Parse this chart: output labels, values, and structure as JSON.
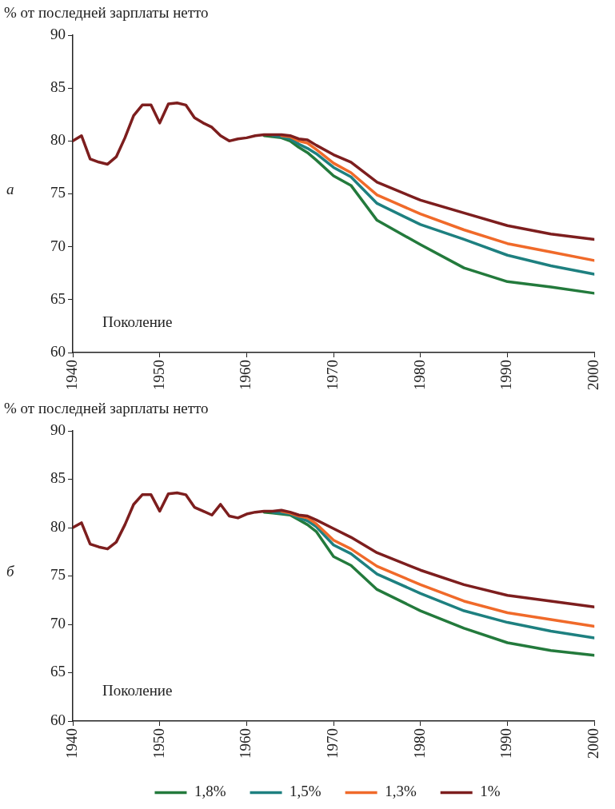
{
  "chart_data": [
    {
      "type": "line",
      "title": "а",
      "ylabel": "% от последней зарплаты нетто",
      "xlabel": "Поколение",
      "xlim": [
        1940,
        2000
      ],
      "xticks": [
        1940,
        1950,
        1960,
        1970,
        1980,
        1990,
        2000
      ],
      "ylim": [
        60,
        90
      ],
      "yticks": [
        60,
        65,
        70,
        75,
        80,
        85,
        90
      ],
      "grid": false,
      "legend": false,
      "marker": "none",
      "line_style": "solid",
      "x": [
        1940,
        1941,
        1942,
        1943,
        1944,
        1945,
        1946,
        1947,
        1948,
        1949,
        1950,
        1951,
        1952,
        1953,
        1954,
        1955,
        1956,
        1957,
        1958,
        1959,
        1960,
        1961,
        1962,
        1963,
        1964,
        1965,
        1966,
        1967,
        1968,
        1970,
        1972,
        1975,
        1980,
        1985,
        1990,
        1995,
        2000
      ],
      "series": [
        {
          "color": "#237a3c",
          "values": [
            null,
            null,
            null,
            null,
            null,
            null,
            null,
            null,
            null,
            null,
            null,
            null,
            null,
            null,
            null,
            null,
            null,
            null,
            null,
            null,
            null,
            null,
            80.5,
            80.4,
            80.3,
            80.0,
            79.4,
            78.9,
            78.2,
            76.7,
            75.8,
            72.5,
            70.2,
            68.0,
            66.7,
            66.2,
            65.6
          ]
        },
        {
          "color": "#1e8080",
          "values": [
            null,
            null,
            null,
            null,
            null,
            null,
            null,
            null,
            null,
            null,
            null,
            null,
            null,
            null,
            null,
            null,
            null,
            null,
            null,
            null,
            null,
            null,
            null,
            80.5,
            80.4,
            80.2,
            79.7,
            79.3,
            78.8,
            77.5,
            76.6,
            74.1,
            72.1,
            70.7,
            69.2,
            68.2,
            67.4
          ]
        },
        {
          "color": "#f06a2a",
          "values": [
            null,
            null,
            null,
            null,
            null,
            null,
            null,
            null,
            null,
            null,
            null,
            null,
            null,
            null,
            null,
            null,
            null,
            null,
            null,
            null,
            null,
            null,
            null,
            null,
            80.5,
            80.4,
            80.0,
            79.8,
            79.2,
            77.9,
            77.0,
            74.9,
            73.1,
            71.6,
            70.3,
            69.5,
            68.7
          ]
        },
        {
          "color": "#7d1e1e",
          "values": [
            80.0,
            80.5,
            78.3,
            78.0,
            77.8,
            78.5,
            80.3,
            82.4,
            83.4,
            83.4,
            81.7,
            83.5,
            83.6,
            83.4,
            82.2,
            81.7,
            81.3,
            80.5,
            80.0,
            80.2,
            80.3,
            80.5,
            80.6,
            80.6,
            80.6,
            80.5,
            80.2,
            80.1,
            79.6,
            78.7,
            78.0,
            76.1,
            74.4,
            73.2,
            72.0,
            71.2,
            70.7
          ]
        }
      ]
    },
    {
      "type": "line",
      "title": "б",
      "ylabel": "% от последней зарплаты нетто",
      "xlabel": "Поколение",
      "xlim": [
        1940,
        2000
      ],
      "xticks": [
        1940,
        1950,
        1960,
        1970,
        1980,
        1990,
        2000
      ],
      "ylim": [
        60,
        90
      ],
      "yticks": [
        60,
        65,
        70,
        75,
        80,
        85,
        90
      ],
      "grid": false,
      "legend": "bottom",
      "marker": "none",
      "line_style": "solid",
      "x": [
        1940,
        1941,
        1942,
        1943,
        1944,
        1945,
        1946,
        1947,
        1948,
        1949,
        1950,
        1951,
        1952,
        1953,
        1954,
        1955,
        1956,
        1957,
        1958,
        1959,
        1960,
        1961,
        1962,
        1963,
        1964,
        1965,
        1966,
        1967,
        1968,
        1970,
        1972,
        1975,
        1980,
        1985,
        1990,
        1995,
        2000
      ],
      "series": [
        {
          "name": "1,8%",
          "color": "#237a3c",
          "values": [
            null,
            null,
            null,
            null,
            null,
            null,
            null,
            null,
            null,
            null,
            null,
            null,
            null,
            null,
            null,
            null,
            null,
            null,
            null,
            null,
            null,
            null,
            81.6,
            81.5,
            81.4,
            81.3,
            80.8,
            80.3,
            79.6,
            77.0,
            76.1,
            73.6,
            71.4,
            69.6,
            68.1,
            67.3,
            66.8
          ]
        },
        {
          "name": "1,5%",
          "color": "#1e8080",
          "values": [
            null,
            null,
            null,
            null,
            null,
            null,
            null,
            null,
            null,
            null,
            null,
            null,
            null,
            null,
            null,
            null,
            null,
            null,
            null,
            null,
            null,
            null,
            null,
            81.6,
            81.5,
            81.4,
            81.0,
            80.7,
            80.1,
            78.2,
            77.3,
            75.2,
            73.2,
            71.4,
            70.2,
            69.3,
            68.6
          ]
        },
        {
          "name": "1,3%",
          "color": "#f06a2a",
          "values": [
            null,
            null,
            null,
            null,
            null,
            null,
            null,
            null,
            null,
            null,
            null,
            null,
            null,
            null,
            null,
            null,
            null,
            null,
            null,
            null,
            null,
            null,
            null,
            null,
            81.7,
            81.5,
            81.2,
            81.0,
            80.4,
            78.7,
            77.8,
            76.0,
            74.1,
            72.4,
            71.2,
            70.5,
            69.8
          ]
        },
        {
          "name": "1%",
          "color": "#7d1e1e",
          "values": [
            80.0,
            80.5,
            78.3,
            78.0,
            77.8,
            78.5,
            80.3,
            82.4,
            83.4,
            83.4,
            81.7,
            83.5,
            83.6,
            83.4,
            82.1,
            81.7,
            81.3,
            82.4,
            81.2,
            81.0,
            81.4,
            81.6,
            81.7,
            81.7,
            81.8,
            81.6,
            81.3,
            81.2,
            80.8,
            79.9,
            79.0,
            77.4,
            75.6,
            74.1,
            73.0,
            72.4,
            71.8
          ]
        }
      ]
    }
  ]
}
